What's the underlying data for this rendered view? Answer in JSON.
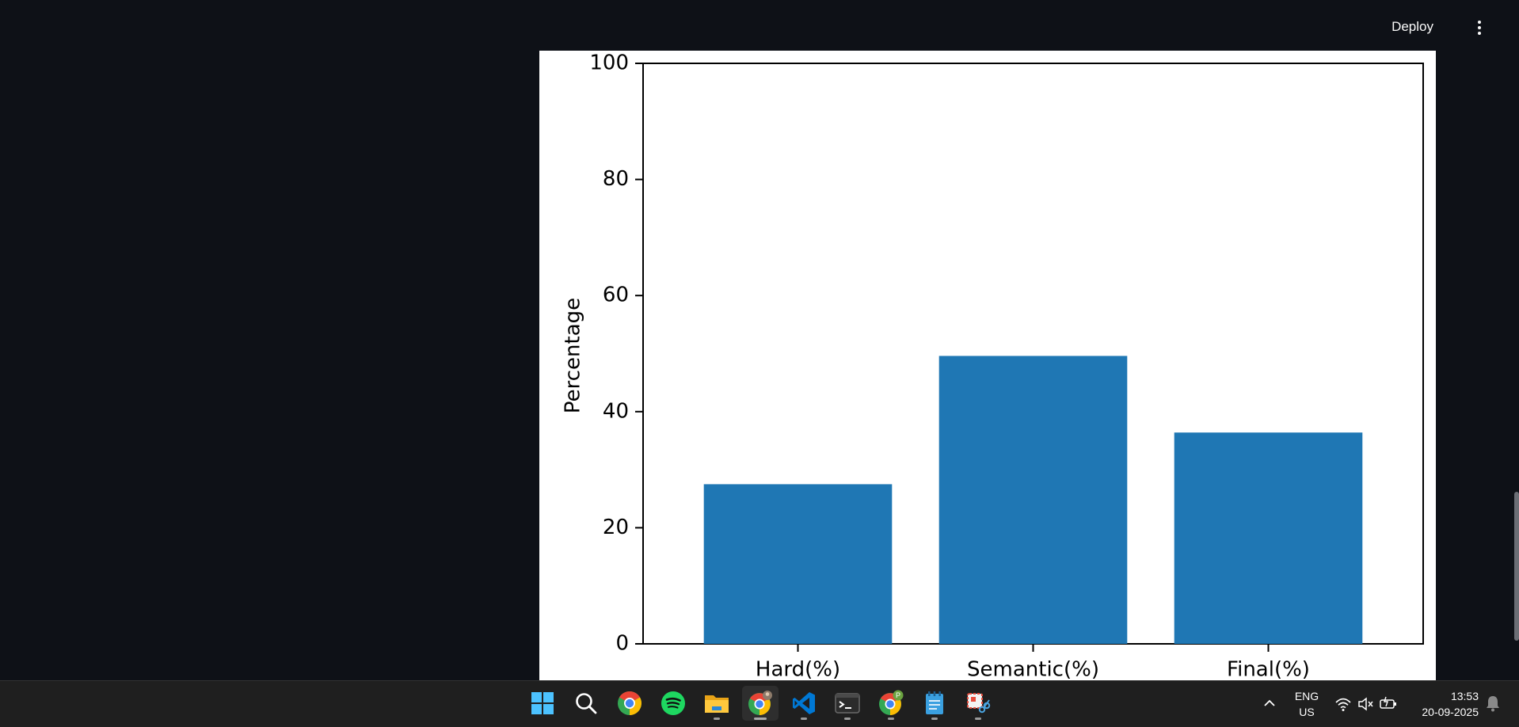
{
  "header": {
    "deploy_label": "Deploy",
    "menu_icon": "more-vertical-icon"
  },
  "chart_data": {
    "type": "bar",
    "categories": [
      "Hard(%)",
      "Semantic(%)",
      "Final(%)"
    ],
    "values": [
      27.5,
      49.6,
      36.4
    ],
    "title": "",
    "xlabel": "",
    "ylabel": "Percentage",
    "ylim": [
      0,
      100
    ],
    "yticks": [
      0,
      20,
      40,
      60,
      80,
      100
    ],
    "bar_color": "#1f77b4",
    "grid": false
  },
  "taskbar": {
    "apps": [
      {
        "name": "windows-start",
        "icon": "windows-logo-icon"
      },
      {
        "name": "search",
        "icon": "search-icon"
      },
      {
        "name": "chrome",
        "icon": "chrome-icon"
      },
      {
        "name": "spotify",
        "icon": "spotify-icon"
      },
      {
        "name": "file-explorer",
        "icon": "folder-icon"
      },
      {
        "name": "chrome-profile",
        "icon": "chrome-icon"
      },
      {
        "name": "vscode",
        "icon": "vscode-icon"
      },
      {
        "name": "terminal",
        "icon": "terminal-icon"
      },
      {
        "name": "chrome-profile-p",
        "icon": "chrome-icon"
      },
      {
        "name": "notepad",
        "icon": "notepad-icon"
      },
      {
        "name": "snipping-tool",
        "icon": "snipping-tool-icon"
      }
    ],
    "tray": {
      "lang_primary": "ENG",
      "lang_secondary": "US",
      "time": "13:53",
      "date": "20-09-2025",
      "chrome_badge": "P"
    }
  }
}
